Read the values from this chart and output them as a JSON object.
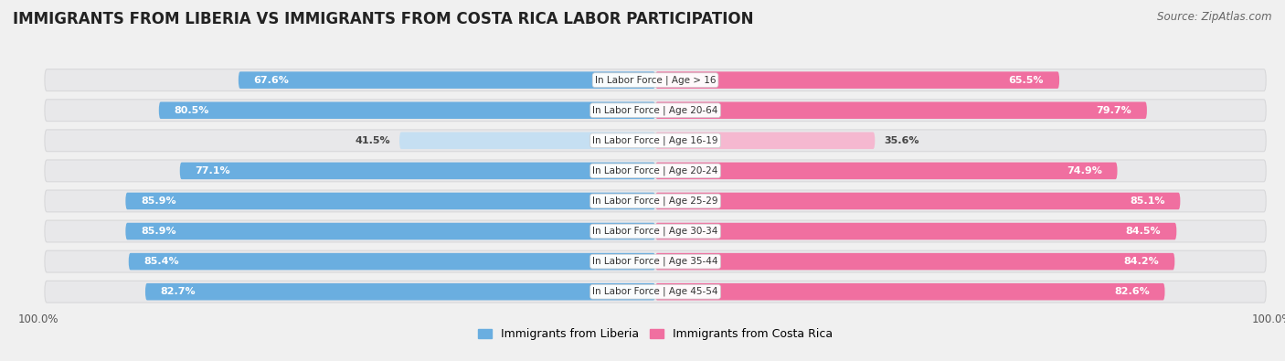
{
  "title": "IMMIGRANTS FROM LIBERIA VS IMMIGRANTS FROM COSTA RICA LABOR PARTICIPATION",
  "source": "Source: ZipAtlas.com",
  "categories": [
    "In Labor Force | Age > 16",
    "In Labor Force | Age 20-64",
    "In Labor Force | Age 16-19",
    "In Labor Force | Age 20-24",
    "In Labor Force | Age 25-29",
    "In Labor Force | Age 30-34",
    "In Labor Force | Age 35-44",
    "In Labor Force | Age 45-54"
  ],
  "liberia_values": [
    67.6,
    80.5,
    41.5,
    77.1,
    85.9,
    85.9,
    85.4,
    82.7
  ],
  "costa_rica_values": [
    65.5,
    79.7,
    35.6,
    74.9,
    85.1,
    84.5,
    84.2,
    82.6
  ],
  "liberia_color": "#6aaee0",
  "liberia_color_light": "#c5dff2",
  "costa_rica_color": "#f06fa0",
  "costa_rica_color_light": "#f5b8d0",
  "background_color": "#f0f0f0",
  "row_bg": "#e8e8ea",
  "row_border": "#d8d8da",
  "legend_liberia": "Immigrants from Liberia",
  "legend_costa_rica": "Immigrants from Costa Rica",
  "title_fontsize": 12,
  "source_fontsize": 8.5,
  "bar_label_fontsize": 8,
  "cat_label_fontsize": 7.5
}
